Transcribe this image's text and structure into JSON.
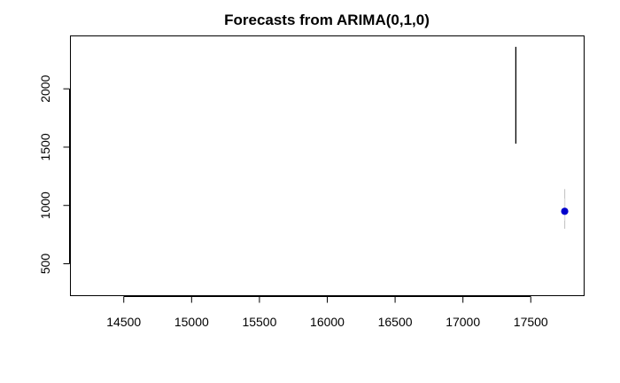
{
  "chart_data": {
    "type": "line",
    "title": "Forecasts from ARIMA(0,1,0)",
    "xlabel": "",
    "ylabel": "",
    "xlim": [
      14110,
      17890
    ],
    "ylim": [
      230,
      2450
    ],
    "x_ticks": [
      14500,
      15000,
      15500,
      16000,
      16500,
      17000,
      17500
    ],
    "y_ticks": [
      500,
      1000,
      1500,
      2000
    ],
    "series": [
      {
        "kind": "observed",
        "color": "#000000",
        "x": [
          17390,
          17390
        ],
        "y": [
          1530,
          2360
        ]
      },
      {
        "kind": "interval",
        "color": "#c8c8c8",
        "x": [
          17750,
          17750
        ],
        "y": [
          800,
          1140
        ]
      },
      {
        "kind": "interval",
        "color": "#dedede",
        "x": [
          17750,
          17750
        ],
        "y": [
          870,
          1060
        ]
      },
      {
        "kind": "point-forecast",
        "color": "#0000cc",
        "x": [
          17750
        ],
        "y": [
          950
        ]
      }
    ],
    "grid": false,
    "legend": "none"
  }
}
